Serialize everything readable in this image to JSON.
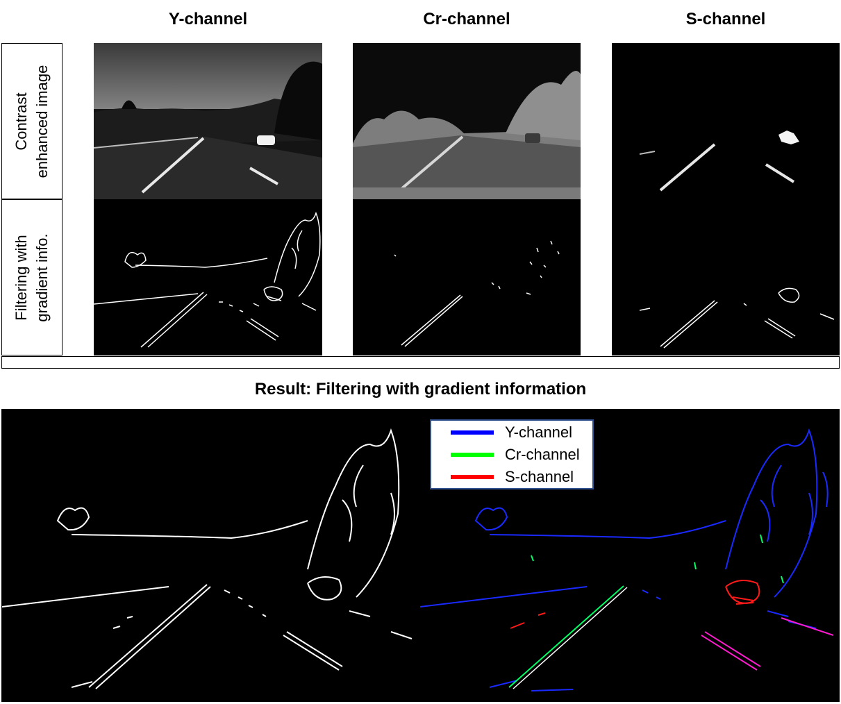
{
  "columns": [
    "Y-channel",
    "Cr-channel",
    "S-channel"
  ],
  "rows": {
    "contrast": [
      "Contrast",
      "enhanced image"
    ],
    "filtering": [
      "Filtering with",
      "gradient info."
    ]
  },
  "result": {
    "title": "Result: Filtering with gradient information"
  },
  "legend": [
    {
      "label": "Y-channel",
      "color": "#0000ff"
    },
    {
      "label": "Cr-channel",
      "color": "#00ff00"
    },
    {
      "label": "S-channel",
      "color": "#ff0000"
    }
  ]
}
